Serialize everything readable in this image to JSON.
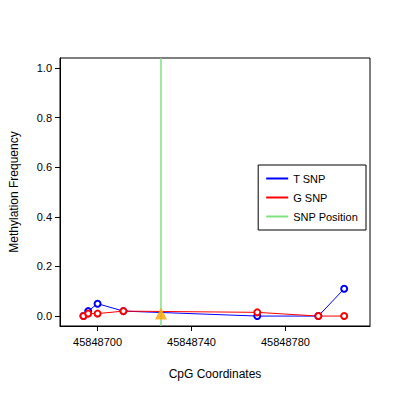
{
  "chart_data": {
    "type": "line",
    "x_label": "CpG Coordinates",
    "y_label": "Methylation Frequency",
    "xlim": [
      45848684,
      45848816
    ],
    "xticks": [
      45848700,
      45848740,
      45848780
    ],
    "ylim": [
      -0.04,
      1.04
    ],
    "yticks": [
      {
        "value": 0,
        "label": "0.0"
      },
      {
        "value": 0.2,
        "label": "0.2"
      },
      {
        "value": 0.4,
        "label": "0.4"
      },
      {
        "value": 0.6,
        "label": "0.6"
      },
      {
        "value": 0.8,
        "label": "0.8"
      },
      {
        "value": 1,
        "label": "1.0"
      }
    ],
    "grid": false,
    "legend": "right",
    "marker": "open_circle",
    "series": [
      {
        "name": "T SNP",
        "color": "#0000FF",
        "x": [
          45848694,
          45848696,
          45848700,
          45848711,
          45848768,
          45848794,
          45848805
        ],
        "values": [
          0.0,
          0.02,
          0.05,
          0.02,
          0.0,
          0.0,
          0.11
        ]
      },
      {
        "name": "G SNP",
        "color": "#FF0000",
        "x": [
          45848694,
          45848696,
          45848700,
          45848711,
          45848768,
          45848794,
          45848805
        ],
        "values": [
          0.0,
          0.01,
          0.01,
          0.02,
          0.015,
          0.0,
          0.0
        ]
      }
    ],
    "snp": {
      "name": "SNP Position",
      "x": 45848727,
      "y": 0.01,
      "color": "#80E080",
      "marker": "triangle",
      "marker_color": "#FFA500"
    }
  }
}
